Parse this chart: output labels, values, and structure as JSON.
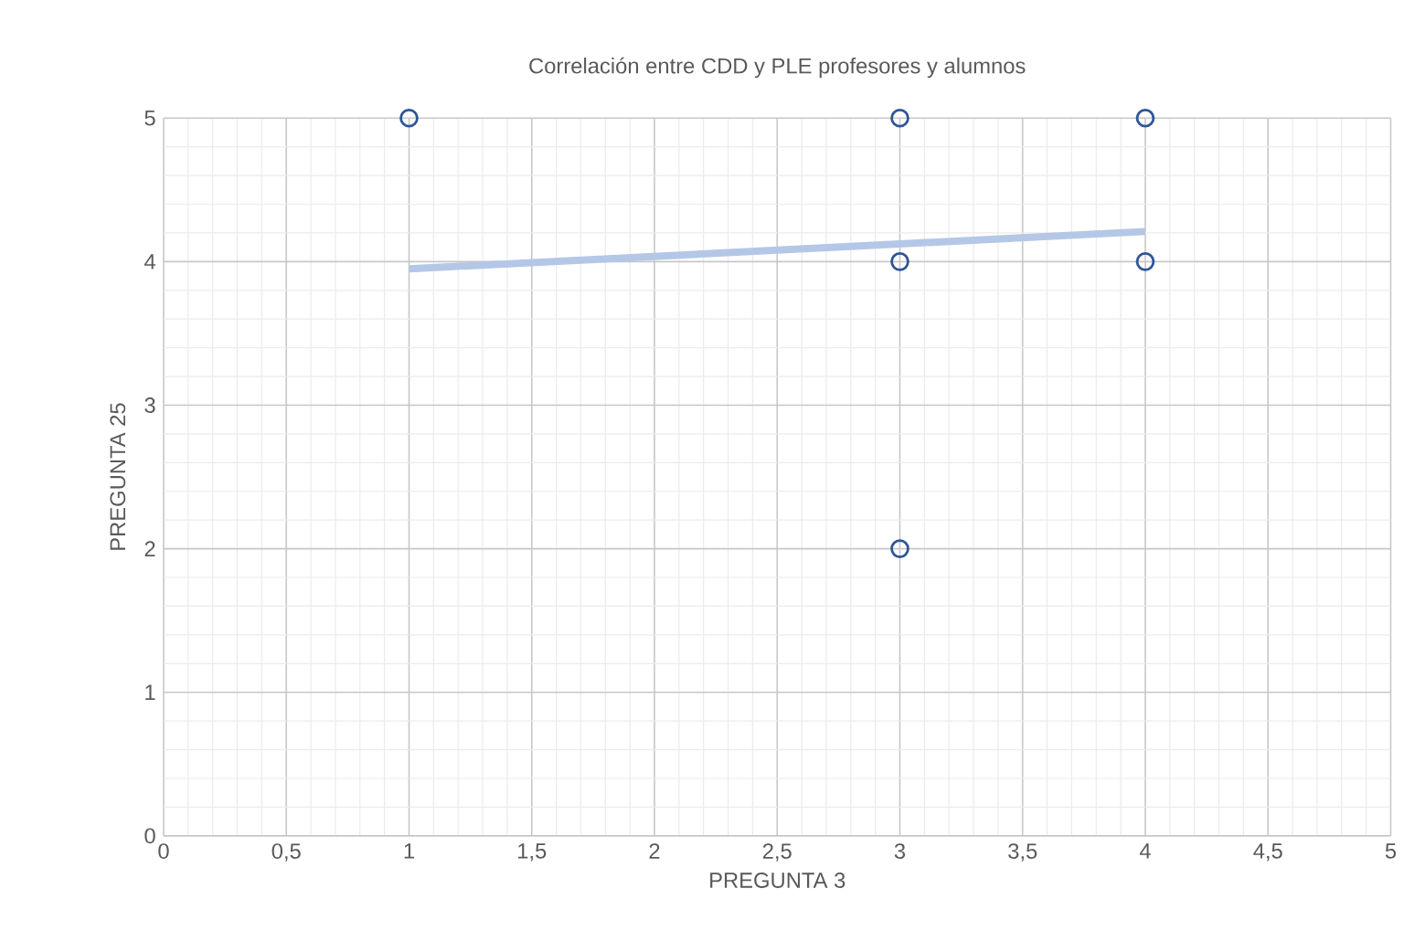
{
  "chart_data": {
    "type": "scatter",
    "title": "Correlación entre CDD y PLE profesores y alumnos",
    "xlabel": "PREGUNTA 3",
    "ylabel": "PREGUNTA 25",
    "xlim": [
      0,
      5
    ],
    "ylim": [
      0,
      5
    ],
    "xticks": [
      0,
      {
        "value": 0.5,
        "label": "0,5"
      },
      1,
      {
        "value": 1.5,
        "label": "1,5"
      },
      2,
      {
        "value": 2.5,
        "label": "2,5"
      },
      3,
      {
        "value": 3.5,
        "label": "3,5"
      },
      4,
      {
        "value": 4.5,
        "label": "4,5"
      },
      5
    ],
    "yticks": [
      0,
      1,
      2,
      3,
      4,
      5
    ],
    "grid": true,
    "series": [
      {
        "marker": "circle",
        "color": "#2f5597",
        "x": [
          1,
          3,
          4,
          3,
          4,
          3
        ],
        "values": [
          5,
          5,
          5,
          4,
          4,
          2
        ]
      },
      {
        "type": "line",
        "marker": "none",
        "color": "#b4c7e7",
        "line_style": "solid",
        "x": [
          1,
          4
        ],
        "values": [
          3.95,
          4.21
        ]
      }
    ]
  }
}
